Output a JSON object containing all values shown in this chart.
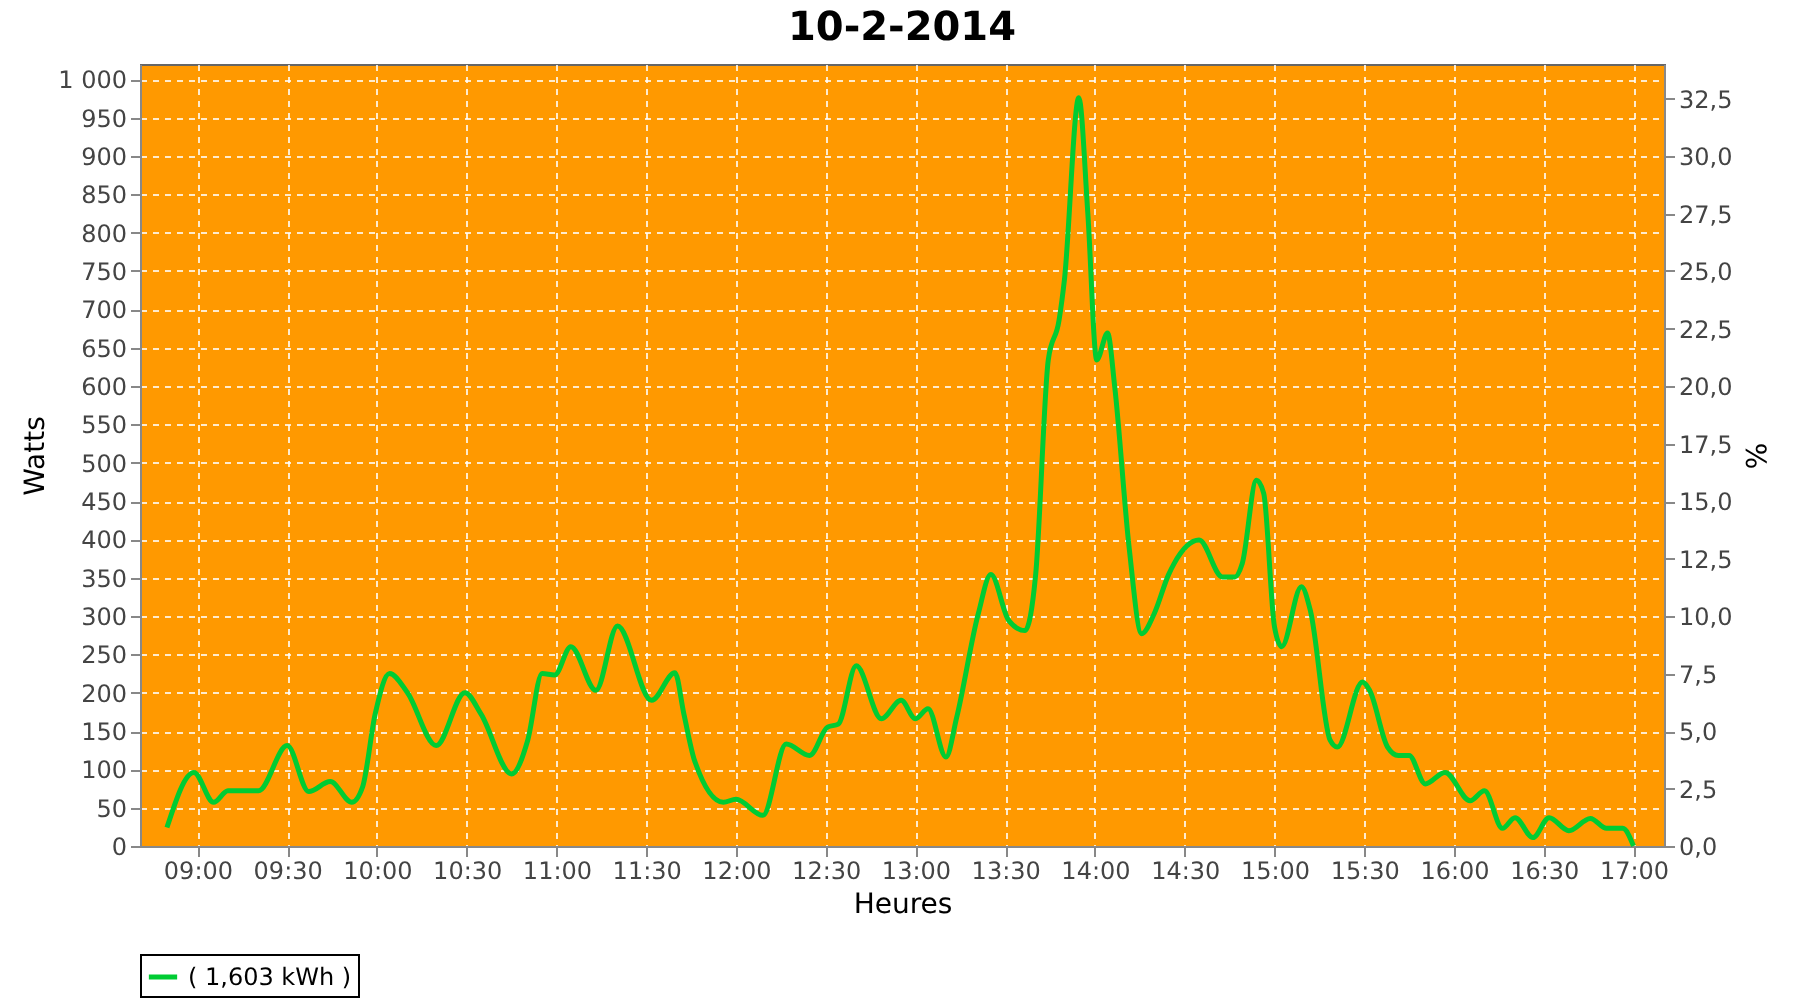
{
  "chart_data": {
    "type": "line",
    "title": "10-2-2014",
    "xlabel": "Heures",
    "ylabel": "Watts",
    "y2label": "%",
    "x": [
      8.83,
      8.98,
      9.09,
      9.17,
      9.34,
      9.5,
      9.62,
      9.74,
      9.86,
      9.92,
      9.99,
      10.07,
      10.17,
      10.33,
      10.49,
      10.58,
      10.75,
      10.84,
      10.92,
      10.99,
      11.08,
      11.22,
      11.34,
      11.53,
      11.66,
      11.71,
      11.77,
      11.93,
      12.0,
      12.15,
      12.28,
      12.41,
      12.51,
      12.57,
      12.67,
      12.81,
      12.92,
      13.0,
      13.07,
      13.17,
      13.23,
      13.35,
      13.42,
      13.52,
      13.61,
      13.67,
      13.74,
      13.8,
      13.83,
      13.91,
      13.96,
      14.01,
      14.07,
      14.11,
      14.19,
      14.26,
      14.33,
      14.41,
      14.44,
      14.58,
      14.71,
      14.78,
      14.82,
      14.9,
      14.94,
      15.0,
      15.04,
      15.15,
      15.2,
      15.31,
      15.35,
      15.49,
      15.53,
      15.63,
      15.69,
      15.75,
      15.84,
      15.95,
      16.09,
      16.17,
      16.27,
      16.34,
      16.44,
      16.53,
      16.64,
      16.76,
      16.85,
      16.94,
      17.0
    ],
    "series": [
      {
        "name": "( 1,603 kWh )",
        "color": "#00cc33",
        "values": [
          24,
          96,
          57,
          72,
          72,
          131,
          71,
          84,
          57,
          77,
          172,
          225,
          200,
          131,
          200,
          172,
          94,
          138,
          225,
          223,
          260,
          203,
          287,
          190,
          226,
          172,
          111,
          57,
          61,
          40,
          133,
          118,
          155,
          159,
          235,
          166,
          190,
          166,
          179,
          116,
          168,
          303,
          354,
          294,
          281,
          355,
          634,
          686,
          739,
          976,
          826,
          634,
          669,
          599,
          390,
          277,
          303,
          354,
          368,
          399,
          351,
          351,
          368,
          477,
          460,
          286,
          260,
          338,
          307,
          138,
          129,
          214,
          203,
          129,
          118,
          118,
          81,
          96,
          59,
          72,
          23,
          37,
          11,
          37,
          20,
          36,
          23,
          23,
          0
        ]
      }
    ],
    "xlim": [
      8.68,
      17.17
    ],
    "xticks": [
      {
        "value": 9,
        "label": "09:00"
      },
      {
        "value": 9.5,
        "label": "09:30"
      },
      {
        "value": 10,
        "label": "10:00"
      },
      {
        "value": 10.5,
        "label": "10:30"
      },
      {
        "value": 11,
        "label": "11:00"
      },
      {
        "value": 11.5,
        "label": "11:30"
      },
      {
        "value": 12,
        "label": "12:00"
      },
      {
        "value": 12.5,
        "label": "12:30"
      },
      {
        "value": 13,
        "label": "13:00"
      },
      {
        "value": 13.5,
        "label": "13:30"
      },
      {
        "value": 14,
        "label": "14:00"
      },
      {
        "value": 14.5,
        "label": "14:30"
      },
      {
        "value": 15,
        "label": "15:00"
      },
      {
        "value": 15.5,
        "label": "15:30"
      },
      {
        "value": 16,
        "label": "16:00"
      },
      {
        "value": 16.5,
        "label": "16:30"
      },
      {
        "value": 17,
        "label": "17:00"
      }
    ],
    "ylim": [
      0,
      1020
    ],
    "yticks": [
      0,
      50,
      100,
      150,
      200,
      250,
      300,
      350,
      400,
      450,
      500,
      550,
      600,
      650,
      700,
      750,
      800,
      850,
      900,
      950,
      {
        "value": 1000,
        "label": "1 000"
      }
    ],
    "y2lim": [
      0,
      34
    ],
    "y2ticks": [
      {
        "value": 0,
        "label": "0,0"
      },
      {
        "value": 2.5,
        "label": "2,5"
      },
      {
        "value": 5,
        "label": "5,0"
      },
      {
        "value": 7.5,
        "label": "7,5"
      },
      {
        "value": 10,
        "label": "10,0"
      },
      {
        "value": 12.5,
        "label": "12,5"
      },
      {
        "value": 15,
        "label": "15,0"
      },
      {
        "value": 17.5,
        "label": "17,5"
      },
      {
        "value": 20,
        "label": "20,0"
      },
      {
        "value": 22.5,
        "label": "22,5"
      },
      {
        "value": 25,
        "label": "25,0"
      },
      {
        "value": 27.5,
        "label": "27,5"
      },
      {
        "value": 30,
        "label": "30,0"
      },
      {
        "value": 32.5,
        "label": "32,5"
      }
    ],
    "grid": true,
    "legend": "bottom",
    "line_style": "solid",
    "marker": "none"
  }
}
